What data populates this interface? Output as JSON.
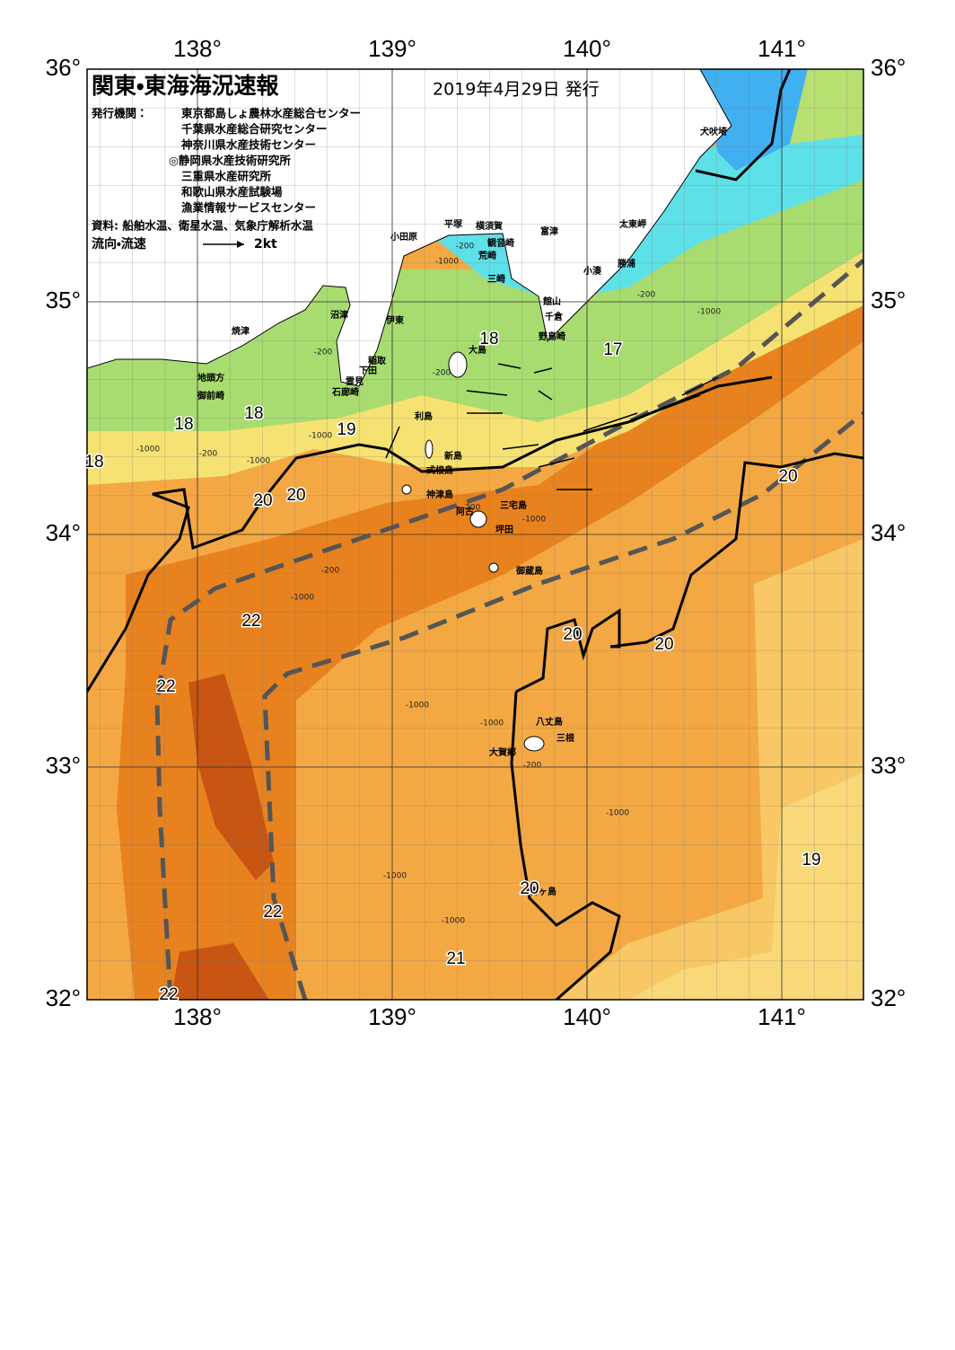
{
  "title": "関東・東海海況速報",
  "issue_date": "2019年4月29日 発行",
  "issuer_label": "発行機関：",
  "issuers": [
    "東京都島しょ農林水産総合センター",
    "千葉県水産総合研究センター",
    "神奈川県水産技術センター",
    "◎静岡県水産技術研究所",
    "三重県水産研究所",
    "和歌山県水産試験場",
    "漁業情報サービスセンター"
  ],
  "sources": "資料: 船舶水温、衛星水温、気象庁解析水温",
  "current_legend": {
    "label": "流向・流速",
    "speed": "2kt"
  },
  "longitude_ticks": [
    {
      "value": 138,
      "label": "138°"
    },
    {
      "value": 139,
      "label": "139°"
    },
    {
      "value": 140,
      "label": "140°"
    },
    {
      "value": 141,
      "label": "141°"
    }
  ],
  "latitude_ticks": [
    {
      "value": 36,
      "label": "36°"
    },
    {
      "value": 35,
      "label": "35°"
    },
    {
      "value": 34,
      "label": "34°"
    },
    {
      "value": 33,
      "label": "33°"
    },
    {
      "value": 32,
      "label": "32°"
    }
  ],
  "place_names": [
    "犬吠埼",
    "太東岬",
    "勝浦",
    "小湊",
    "富津",
    "横須賀",
    "平塚",
    "観音崎",
    "荒崎",
    "小田原",
    "三崎",
    "館山",
    "千倉",
    "野島崎",
    "沼津",
    "伊東",
    "焼津",
    "大島",
    "稲取",
    "下田",
    "雲見",
    "石廊崎",
    "地頭方",
    "御前崎",
    "利島",
    "新島",
    "式根島",
    "神津島",
    "三宅島",
    "阿古",
    "坪田",
    "御蔵島",
    "八丈島",
    "三根",
    "大賀郷",
    "青ヶ島"
  ],
  "temperature_labels": [
    18,
    17,
    18,
    18,
    18,
    19,
    20,
    20,
    20,
    22,
    22,
    20,
    20,
    22,
    19,
    20,
    21,
    22
  ],
  "depth_labels": [
    -200,
    -1000,
    -200,
    -200,
    -1000,
    -1000,
    -200,
    -1000,
    -200,
    -1000,
    -200,
    -1000,
    -1000,
    -1000,
    -200,
    -1000,
    -1000,
    -1000,
    -1000,
    -200
  ]
}
